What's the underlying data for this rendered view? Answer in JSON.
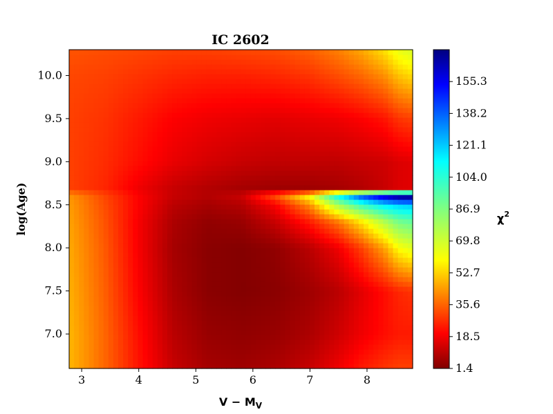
{
  "chart_data": {
    "type": "heatmap",
    "title": "IC 2602",
    "xlabel": {
      "main": "V − M",
      "sub": "V"
    },
    "ylabel": "log(Age)",
    "colorbar_label": {
      "main": "χ",
      "sup": "2"
    },
    "xlim": [
      2.78,
      8.8
    ],
    "ylim": [
      6.6,
      10.3
    ],
    "x_ticks": [
      3,
      4,
      5,
      6,
      7,
      8
    ],
    "x_tick_labels": [
      "3",
      "4",
      "5",
      "6",
      "7",
      "8"
    ],
    "y_ticks": [
      7.0,
      7.5,
      8.0,
      8.5,
      9.0,
      9.5,
      10.0
    ],
    "y_tick_labels": [
      "7.0",
      "7.5",
      "8.0",
      "8.5",
      "9.0",
      "9.5",
      "10.0"
    ],
    "colorbar_range": [
      1.4,
      172.4
    ],
    "colorbar_ticks": [
      1.4,
      18.5,
      35.6,
      52.7,
      69.8,
      86.9,
      104.0,
      121.1,
      138.2,
      155.3
    ],
    "colorbar_tick_labels": [
      "1.4",
      "18.5",
      "35.6",
      "52.7",
      "69.8",
      "86.9",
      "104.0",
      "121.1",
      "138.2",
      "155.3"
    ],
    "colormap": "jet_r",
    "grid": false,
    "chi2_grid": {
      "x": [
        2.8,
        3.4,
        4.0,
        4.6,
        5.2,
        5.8,
        6.4,
        7.0,
        7.5,
        7.9,
        8.3,
        8.55,
        8.8
      ],
      "y": [
        6.6,
        7.0,
        7.5,
        8.0,
        8.3,
        8.5,
        8.6,
        8.7,
        9.0,
        9.5,
        10.0,
        10.3
      ],
      "z": [
        [
          48,
          36,
          23,
          12,
          7,
          6,
          8,
          12,
          18,
          24,
          28,
          30,
          30
        ],
        [
          48,
          36,
          22,
          10,
          5,
          4,
          5,
          8,
          13,
          18,
          22,
          24,
          24
        ],
        [
          47,
          35,
          20,
          8,
          3,
          2,
          3,
          6,
          10,
          16,
          22,
          26,
          28
        ],
        [
          46,
          34,
          19,
          7,
          3,
          2,
          4,
          10,
          18,
          30,
          45,
          60,
          66
        ],
        [
          45,
          33,
          19,
          8,
          4,
          5,
          12,
          24,
          38,
          55,
          75,
          88,
          92
        ],
        [
          44,
          32,
          20,
          10,
          7,
          9,
          20,
          42,
          78,
          100,
          115,
          120,
          122
        ],
        [
          43,
          31,
          20,
          12,
          9,
          12,
          32,
          60,
          110,
          140,
          160,
          170,
          172
        ],
        [
          30,
          26,
          18,
          12,
          9,
          7,
          6,
          6,
          7,
          9,
          12,
          15,
          16
        ],
        [
          30,
          27,
          22,
          17,
          14,
          12,
          11,
          11,
          11,
          12,
          13,
          15,
          16
        ],
        [
          30,
          28,
          24,
          20,
          18,
          17,
          16,
          17,
          18,
          20,
          23,
          28,
          30
        ],
        [
          31,
          30,
          28,
          26,
          25,
          25,
          26,
          28,
          32,
          36,
          42,
          50,
          54
        ],
        [
          33,
          32,
          31,
          30,
          30,
          31,
          32,
          35,
          40,
          46,
          55,
          64,
          68
        ]
      ]
    }
  }
}
